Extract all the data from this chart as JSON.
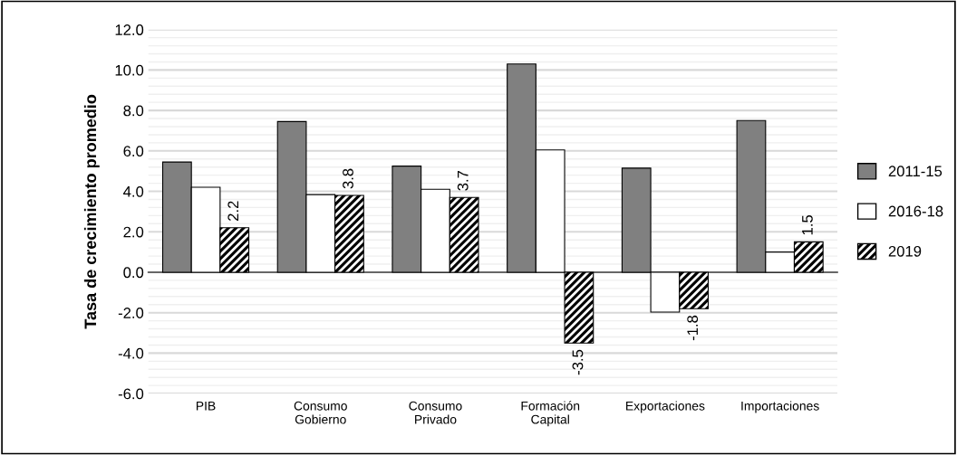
{
  "chart_data": {
    "type": "bar",
    "ylabel": "Tasa de crecimiento promedio",
    "categories": [
      "PIB",
      "Consumo\nGobierno",
      "Consumo\nPrivado",
      "Formación\nCapital",
      "Exportaciones",
      "Importaciones"
    ],
    "series": [
      {
        "name": "2011-15",
        "color": "#808080",
        "values": [
          5.45,
          7.45,
          5.25,
          10.3,
          5.15,
          7.5
        ]
      },
      {
        "name": "2016-18",
        "color": "#ffffff",
        "values": [
          4.2,
          3.84,
          4.1,
          6.05,
          -1.97,
          1.0
        ]
      },
      {
        "name": "2019",
        "color": "#000000",
        "values": [
          2.2,
          3.8,
          3.7,
          -3.5,
          -1.8,
          1.5
        ],
        "value_labels": [
          "2.2",
          "3.8",
          "3.7",
          "-3.5",
          "-1.8",
          "1.5"
        ]
      }
    ],
    "ylim": [
      -6,
      12
    ],
    "yticks": [
      {
        "value": -6,
        "label": "-6.0"
      },
      {
        "value": -4,
        "label": "-4.0"
      },
      {
        "value": -2,
        "label": "-2.0"
      },
      {
        "value": 0,
        "label": "0.0"
      },
      {
        "value": 2,
        "label": "2.0"
      },
      {
        "value": 4,
        "label": "4.0"
      },
      {
        "value": 6,
        "label": "6.0"
      },
      {
        "value": 8,
        "label": "8.0"
      },
      {
        "value": 10,
        "label": "10.0"
      },
      {
        "value": 12,
        "label": "12.0"
      }
    ],
    "grid": "y",
    "legend": "right"
  }
}
